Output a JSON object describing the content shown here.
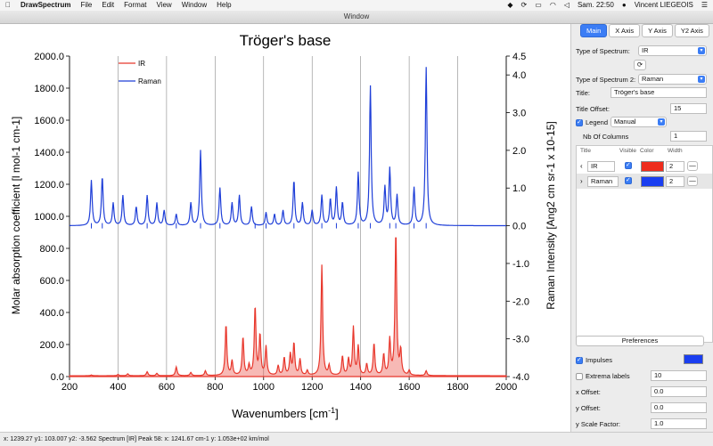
{
  "menubar": {
    "apple": "",
    "app_name": "DrawSpectrum",
    "items": [
      "File",
      "Edit",
      "Format",
      "View",
      "Window",
      "Help"
    ],
    "clock": "Sam. 22:50",
    "user": "Vincent LIEGEOIS"
  },
  "window": {
    "title": "Window"
  },
  "chart_data": {
    "type": "line",
    "title": "Tröger's base",
    "xlabel": "Wavenumbers [cm-1]",
    "xlabel_main": "Wavenumbers [cm",
    "xlabel_sup": "-1",
    "xlabel_end": "]",
    "ylabel": "Molar absorption coefficient [l mol-1 cm-1]",
    "y2label": "Raman Intensity [Ang2 cm sr-1 x 10-15]",
    "xlim": [
      200,
      2000
    ],
    "ylim": [
      0,
      2000
    ],
    "y2lim": [
      -4,
      4.5
    ],
    "xticks": [
      "200",
      "400",
      "600",
      "800",
      "1000",
      "1200",
      "1400",
      "1600",
      "1800",
      "2000"
    ],
    "yticks": [
      "0.0",
      "200.0",
      "400.0",
      "600.0",
      "800.0",
      "1000.0",
      "1200.0",
      "1400.0",
      "1600.0",
      "1800.0",
      "2000.0"
    ],
    "y2ticks": [
      "-4.0",
      "-3.0",
      "-2.0",
      "-1.0",
      "0.0",
      "1.0",
      "2.0",
      "3.0",
      "4.0",
      "4.5"
    ],
    "legend": {
      "position": "top-left",
      "entries": [
        "IR",
        "Raman"
      ]
    },
    "series": [
      {
        "name": "IR",
        "color": "#e8372c",
        "axis": "left",
        "peaks": [
          [
            290,
            5
          ],
          [
            400,
            8
          ],
          [
            440,
            12
          ],
          [
            520,
            25
          ],
          [
            560,
            15
          ],
          [
            640,
            55
          ],
          [
            700,
            20
          ],
          [
            760,
            30
          ],
          [
            845,
            320
          ],
          [
            870,
            90
          ],
          [
            915,
            240
          ],
          [
            940,
            60
          ],
          [
            965,
            430
          ],
          [
            985,
            250
          ],
          [
            1010,
            180
          ],
          [
            1060,
            60
          ],
          [
            1085,
            110
          ],
          [
            1110,
            130
          ],
          [
            1125,
            200
          ],
          [
            1150,
            100
          ],
          [
            1180,
            30
          ],
          [
            1240,
            690
          ],
          [
            1270,
            60
          ],
          [
            1325,
            120
          ],
          [
            1350,
            100
          ],
          [
            1370,
            300
          ],
          [
            1390,
            180
          ],
          [
            1425,
            70
          ],
          [
            1455,
            200
          ],
          [
            1495,
            130
          ],
          [
            1520,
            220
          ],
          [
            1545,
            900
          ],
          [
            1565,
            150
          ],
          [
            1600,
            30
          ],
          [
            1670,
            30
          ]
        ]
      },
      {
        "name": "Raman",
        "color": "#1f3fd8",
        "axis": "right",
        "peaks": [
          [
            290,
            1.2
          ],
          [
            335,
            1.3
          ],
          [
            380,
            0.6
          ],
          [
            420,
            0.8
          ],
          [
            475,
            0.5
          ],
          [
            520,
            0.8
          ],
          [
            560,
            0.6
          ],
          [
            590,
            0.4
          ],
          [
            640,
            0.3
          ],
          [
            700,
            0.6
          ],
          [
            740,
            2.0
          ],
          [
            820,
            1.0
          ],
          [
            870,
            0.6
          ],
          [
            900,
            0.8
          ],
          [
            950,
            0.5
          ],
          [
            1010,
            0.35
          ],
          [
            1045,
            0.3
          ],
          [
            1080,
            0.4
          ],
          [
            1125,
            1.2
          ],
          [
            1160,
            0.6
          ],
          [
            1200,
            0.4
          ],
          [
            1240,
            0.8
          ],
          [
            1275,
            0.7
          ],
          [
            1300,
            1.0
          ],
          [
            1325,
            0.6
          ],
          [
            1390,
            1.4
          ],
          [
            1440,
            3.7
          ],
          [
            1500,
            1.0
          ],
          [
            1520,
            1.5
          ],
          [
            1550,
            0.8
          ],
          [
            1620,
            1.0
          ],
          [
            1670,
            4.2
          ]
        ]
      }
    ],
    "impulse_ticks_x": [
      290,
      335,
      520,
      640,
      740,
      820,
      965,
      1010,
      1125,
      1240,
      1300,
      1390,
      1440,
      1520,
      1545,
      1620,
      1670
    ]
  },
  "panel": {
    "tabs": [
      "Main",
      "X Axis",
      "Y Axis",
      "Y2 Axis"
    ],
    "type_label": "Type of Spectrum:",
    "type_value": "IR",
    "type2_label": "Type of Spectrum 2:",
    "type2_value": "Raman",
    "title_label": "Title:",
    "title_value": "Tröger's base",
    "title_offset_label": "Title Offset:",
    "title_offset_value": "15",
    "legend_label": "Legend",
    "legend_mode": "Manual",
    "nbcols_label": "Nb Of Columns",
    "nbcols_value": "1",
    "table_headers": [
      "Title",
      "Visible",
      "Color",
      "Width"
    ],
    "rows": [
      {
        "title": "IR",
        "width": "2",
        "color": "#ee2c1c"
      },
      {
        "title": "Raman",
        "width": "2",
        "color": "#1a3ef0"
      }
    ],
    "preferences": "Preferences",
    "impulses_label": "Impulses",
    "impulse_color": "#1a3ef0",
    "extrema_label": "Extrema labels",
    "extrema_value": "10",
    "xoffset_label": "x Offset:",
    "xoffset_value": "0.0",
    "yoffset_label": "y Offset:",
    "yoffset_value": "0.0",
    "yscale_label": "y Scale Factor:",
    "yscale_value": "1.0"
  },
  "status": {
    "text": "x:  1239.27   y1:  103.007   y2:   -3.562  Spectrum [IR] Peak 58:  x:  1241.67 cm-1  y:  1.053e+02 km/mol"
  }
}
